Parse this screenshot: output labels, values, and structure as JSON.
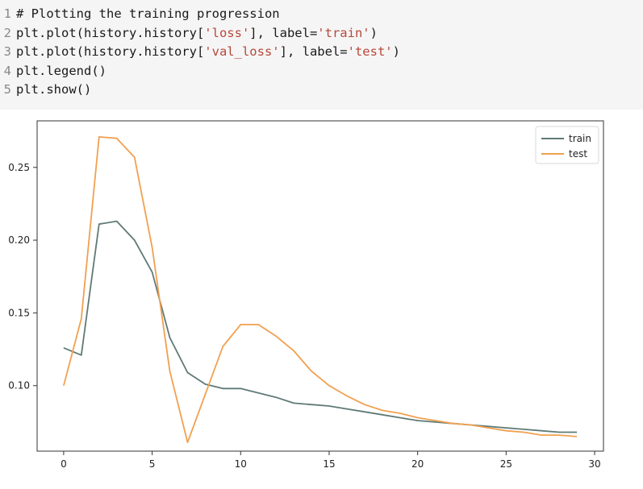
{
  "code": {
    "lines": [
      {
        "num": "1",
        "parts": [
          {
            "t": "# Plotting the training progression",
            "c": "plain"
          }
        ]
      },
      {
        "num": "2",
        "parts": [
          {
            "t": "plt.plot(history.history[",
            "c": "plain"
          },
          {
            "t": "'loss'",
            "c": "str"
          },
          {
            "t": "], label=",
            "c": "plain"
          },
          {
            "t": "'train'",
            "c": "str"
          },
          {
            "t": ")",
            "c": "plain"
          }
        ]
      },
      {
        "num": "3",
        "parts": [
          {
            "t": "plt.plot(history.history[",
            "c": "plain"
          },
          {
            "t": "'val_loss'",
            "c": "str"
          },
          {
            "t": "], label=",
            "c": "plain"
          },
          {
            "t": "'test'",
            "c": "str"
          },
          {
            "t": ")",
            "c": "plain"
          }
        ]
      },
      {
        "num": "4",
        "parts": [
          {
            "t": "plt.legend()",
            "c": "plain"
          }
        ]
      },
      {
        "num": "5",
        "parts": [
          {
            "t": "plt.show()",
            "c": "plain"
          }
        ]
      }
    ]
  },
  "chart_data": {
    "type": "line",
    "title": "",
    "xlabel": "",
    "ylabel": "",
    "xlim": [
      -1.5,
      30.5
    ],
    "ylim": [
      0.055,
      0.282
    ],
    "xticks": [
      0,
      5,
      10,
      15,
      20,
      25,
      30
    ],
    "yticks": [
      0.1,
      0.15,
      0.2,
      0.25
    ],
    "ytick_labels": [
      "0.10",
      "0.15",
      "0.20",
      "0.25"
    ],
    "grid": false,
    "legend": "top-right",
    "x": [
      0,
      1,
      2,
      3,
      4,
      5,
      6,
      7,
      8,
      9,
      10,
      11,
      12,
      13,
      14,
      15,
      16,
      17,
      18,
      19,
      20,
      21,
      22,
      23,
      24,
      25,
      26,
      27,
      28,
      29
    ],
    "series": [
      {
        "name": "train",
        "color": "#5f7a76",
        "values": [
          0.126,
          0.121,
          0.211,
          0.213,
          0.2,
          0.178,
          0.133,
          0.109,
          0.101,
          0.098,
          0.098,
          0.095,
          0.092,
          0.088,
          0.087,
          0.086,
          0.084,
          0.082,
          0.08,
          0.078,
          0.076,
          0.075,
          0.074,
          0.073,
          0.072,
          0.071,
          0.07,
          0.069,
          0.068,
          0.068
        ]
      },
      {
        "name": "test",
        "color": "#f1a050",
        "values": [
          0.1,
          0.146,
          0.271,
          0.27,
          0.257,
          0.195,
          0.11,
          0.061,
          0.094,
          0.127,
          0.142,
          0.142,
          0.134,
          0.124,
          0.11,
          0.1,
          0.093,
          0.087,
          0.083,
          0.081,
          0.078,
          0.076,
          0.074,
          0.073,
          0.071,
          0.069,
          0.068,
          0.066,
          0.066,
          0.065
        ]
      }
    ]
  }
}
